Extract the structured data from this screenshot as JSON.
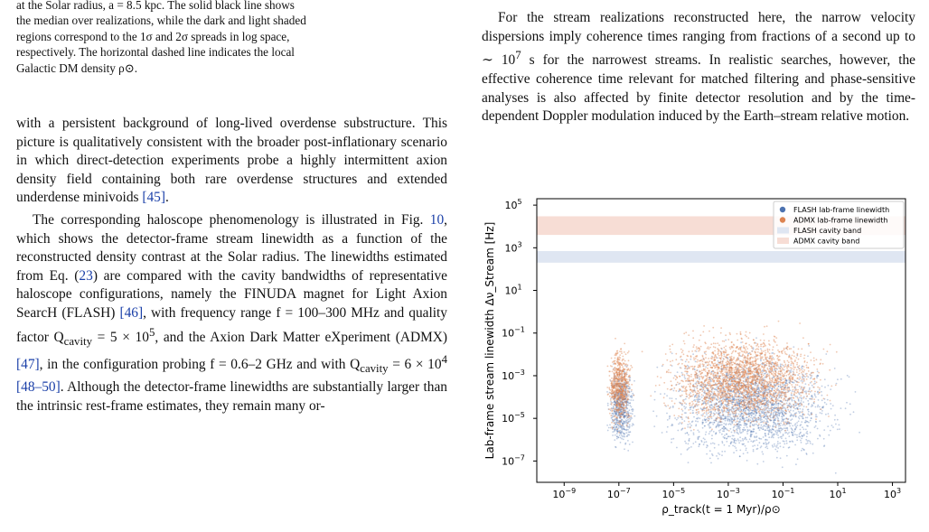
{
  "left_column": {
    "caption": [
      "at the Solar radius, a = 8.5 kpc. The solid black line shows",
      "the median over realizations, while the dark and light shaded",
      "regions correspond to the 1σ and 2σ spreads in log space,",
      "respectively. The horizontal dashed line indicates the local",
      "Galactic DM density ρ⊙."
    ],
    "para1": "with a persistent background of long-lived overdense substructure. This picture is qualitatively consistent with the broader post-inflationary scenario in which direct-detection experiments probe a highly intermittent axion density field containing both rare overdense structures and extended underdense minivoids ",
    "para1_cite": "[45]",
    "para1_end": ".",
    "para2_a": "The corresponding haloscope phenomenology is illustrated in Fig. ",
    "para2_fig": "10",
    "para2_b": ", which shows the detector-frame stream linewidth as a function of the reconstructed density contrast at the Solar radius. The linewidths estimated from Eq. (",
    "para2_eq": "23",
    "para2_c": ") are compared with the cavity bandwidths of representative haloscope configurations, namely the FINUDA magnet for Light Axion SearcH (FLASH) ",
    "para2_cite1": "[46]",
    "para2_d": ", with frequency range f = 100–300 MHz and quality factor Q",
    "para2_sub1": "cavity",
    "para2_e": " = 5 × 10",
    "para2_sup1": "5",
    "para2_f": ", and the Axion Dark Matter eXperiment (ADMX) ",
    "para2_cite2": "[47]",
    "para2_g": ", in the configuration probing f = 0.6–2 GHz and with Q",
    "para2_sub2": "cavity",
    "para2_h": " = 6 × 10",
    "para2_sup2": "4",
    "para2_cite3": "[48–50]",
    "para2_i": ". Although the detector-frame linewidths are substantially larger than the intrinsic rest-frame estimates, they remain many or-"
  },
  "right_column": {
    "para_a": "For the stream realizations reconstructed here, the narrow velocity dispersions imply coherence times ranging from fractions of a second up to ∼ 10",
    "para_sup": "7",
    "para_b": " s for the narrowest streams. In realistic searches, however, the effective coherence time relevant for matched filtering and phase-sensitive analyses is also affected by finite detector resolution and by the time-dependent Doppler modulation induced by the Earth–stream relative motion."
  },
  "chart_data": {
    "type": "scatter",
    "xlabel": "ρ_track(t = 1 Myr)/ρ⊙",
    "ylabel": "Lab-frame stream linewidth Δν_Stream [Hz]",
    "x_scale": "log",
    "y_scale": "log",
    "xlim": [
      1e-10,
      3000
    ],
    "ylim": [
      1e-08,
      200000.0
    ],
    "x_ticks": [
      {
        "v": 1e-09,
        "base": "10",
        "exp": "−9"
      },
      {
        "v": 1e-07,
        "base": "10",
        "exp": "−7"
      },
      {
        "v": 1e-05,
        "base": "10",
        "exp": "−5"
      },
      {
        "v": 0.001,
        "base": "10",
        "exp": "−3"
      },
      {
        "v": 0.1,
        "base": "10",
        "exp": "−1"
      },
      {
        "v": 10,
        "base": "10",
        "exp": "1"
      },
      {
        "v": 1000,
        "base": "10",
        "exp": "3"
      }
    ],
    "y_ticks": [
      {
        "v": 1e-07,
        "base": "10",
        "exp": "−7"
      },
      {
        "v": 1e-05,
        "base": "10",
        "exp": "−5"
      },
      {
        "v": 0.001,
        "base": "10",
        "exp": "−3"
      },
      {
        "v": 0.1,
        "base": "10",
        "exp": "−1"
      },
      {
        "v": 10,
        "base": "10",
        "exp": "1"
      },
      {
        "v": 1000,
        "base": "10",
        "exp": "3"
      },
      {
        "v": 100000,
        "base": "10",
        "exp": "5"
      }
    ],
    "bands": [
      {
        "name": "ADMX cavity band",
        "y": [
          4000.0,
          30000.0
        ],
        "color": "#f7ddd5"
      },
      {
        "name": "FLASH cavity band",
        "y": [
          200,
          700
        ],
        "color": "#dfe6f2"
      }
    ],
    "series": [
      {
        "name": "FLASH lab-frame linewidth",
        "color": "#4c72b0",
        "clusters": [
          {
            "x_range": [
              3e-08,
              5e-07
            ],
            "y_range": [
              1e-07,
              0.01
            ]
          },
          {
            "x_range": [
              5e-07,
              100
            ],
            "y_range": [
              2e-08,
              0.1
            ]
          }
        ]
      },
      {
        "name": "ADMX lab-frame linewidth",
        "color": "#dd8452",
        "clusters": [
          {
            "x_range": [
              3e-08,
              4e-07
            ],
            "y_range": [
              1e-06,
              0.1
            ]
          },
          {
            "x_range": [
              5e-07,
              30
            ],
            "y_range": [
              1e-06,
              0.5
            ]
          }
        ]
      }
    ],
    "legend": "top-right"
  },
  "colors": {
    "flash": "#4c72b0",
    "admx": "#dd8452",
    "link": "#1a3fa8"
  }
}
